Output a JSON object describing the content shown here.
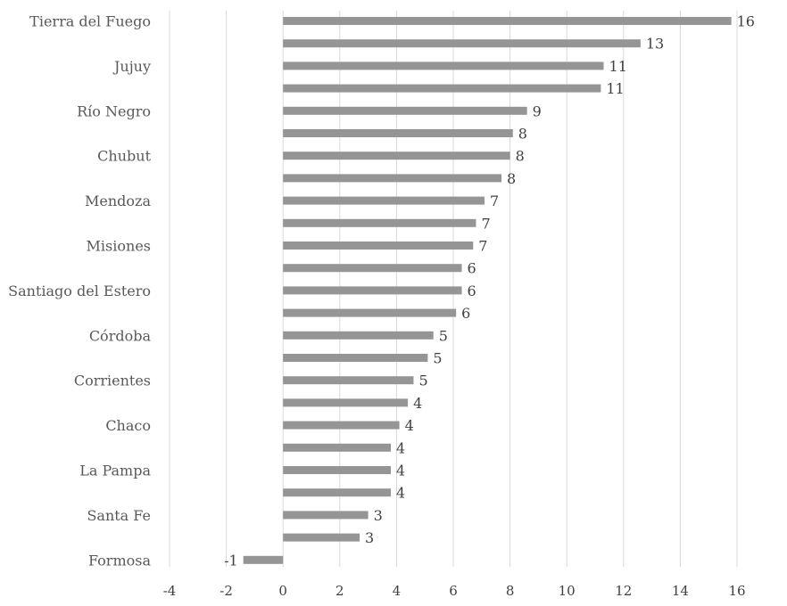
{
  "chart_data": {
    "type": "bar",
    "orientation": "horizontal",
    "title": "",
    "xlabel": "",
    "ylabel": "",
    "xlim": [
      -4,
      16
    ],
    "x_ticks": [
      "-4",
      "-2",
      "0",
      "2",
      "4",
      "6",
      "8",
      "10",
      "12",
      "14",
      "16"
    ],
    "grid": true,
    "legend": "none",
    "bar_color": "#959595",
    "categories": [
      "Tierra del Fuego",
      "",
      "Jujuy",
      "",
      "Río Negro",
      "",
      "Chubut",
      "",
      "Mendoza",
      "",
      "Misiones",
      "",
      "Santiago del Estero",
      "",
      "Córdoba",
      "",
      "Corrientes",
      "",
      "Chaco",
      "",
      "La Pampa",
      "",
      "Santa Fe",
      "",
      "Formosa"
    ],
    "values": [
      15.8,
      12.6,
      11.3,
      11.2,
      8.6,
      8.1,
      8.0,
      7.7,
      7.1,
      6.8,
      6.7,
      6.3,
      6.3,
      6.1,
      5.3,
      5.1,
      4.6,
      4.4,
      4.1,
      3.8,
      3.8,
      3.8,
      3.0,
      2.7,
      -1.4
    ],
    "data_labels": [
      "16",
      "13",
      "11",
      "11",
      "9",
      "8",
      "8",
      "8",
      "7",
      "7",
      "7",
      "6",
      "6",
      "6",
      "5",
      "5",
      "5",
      "4",
      "4",
      "4",
      "4",
      "4",
      "3",
      "3",
      "-1"
    ]
  }
}
